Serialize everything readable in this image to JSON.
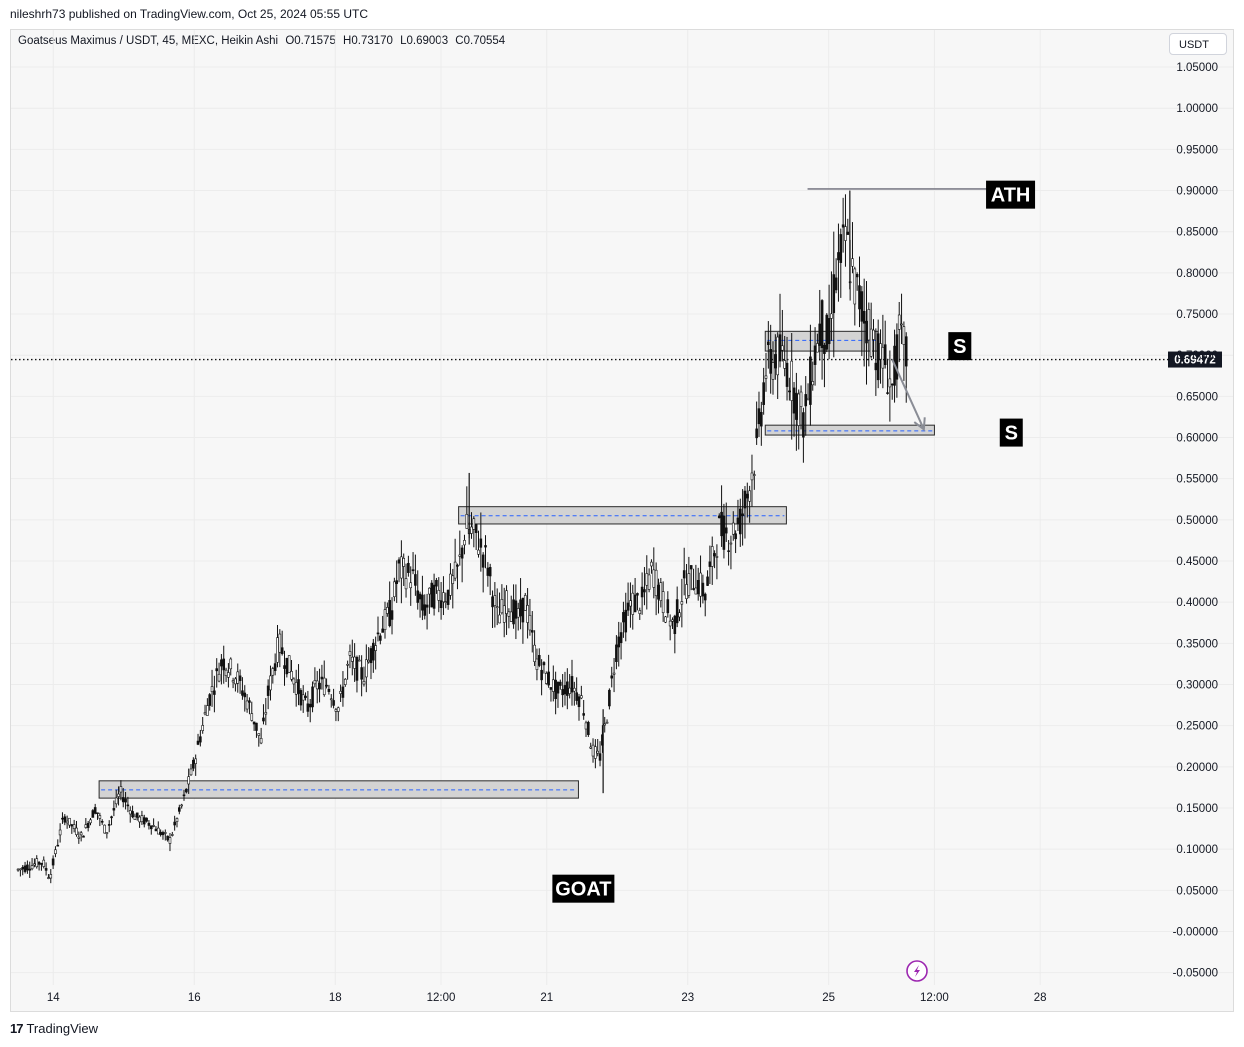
{
  "header": {
    "published_by": "nileshrh73 published on TradingView.com, Oct 25, 2024 05:55 UTC",
    "symbol": "Goatseus Maximus / USDT, 45, MEXC, Heikin Ashi",
    "ohlc": {
      "open": "O0.71575",
      "high": "H0.73170",
      "low": "L0.69003",
      "close": "C0.70554"
    }
  },
  "currency_button": "USDT",
  "footer": {
    "brand": "TradingView"
  },
  "chart_data": {
    "type": "candlestick",
    "y_ticks": [
      "1.05000",
      "1.00000",
      "0.95000",
      "0.90000",
      "0.85000",
      "0.80000",
      "0.75000",
      "0.70000",
      "0.65000",
      "0.60000",
      "0.55000",
      "0.50000",
      "0.45000",
      "0.40000",
      "0.35000",
      "0.30000",
      "0.25000",
      "0.20000",
      "0.15000",
      "0.10000",
      "0.05000",
      "-0.00000",
      "-0.05000"
    ],
    "ylim": [
      -0.065,
      1.095
    ],
    "x_ticks": [
      {
        "label": "14",
        "t": 0.1
      },
      {
        "label": "16",
        "t": 2.1
      },
      {
        "label": "18",
        "t": 4.1
      },
      {
        "label": "12:00",
        "t": 5.6
      },
      {
        "label": "21",
        "t": 7.1
      },
      {
        "label": "23",
        "t": 9.1
      },
      {
        "label": "25",
        "t": 11.1
      },
      {
        "label": "12:00",
        "t": 12.6
      },
      {
        "label": "28",
        "t": 14.1
      }
    ],
    "xlim": [
      -0.5,
      15.8
    ],
    "last_price": {
      "value": 0.69472,
      "label": "0.69472"
    },
    "price_path": [
      [
        -0.4,
        0.075
      ],
      [
        -0.05,
        0.085
      ],
      [
        0.05,
        0.065
      ],
      [
        0.25,
        0.14
      ],
      [
        0.5,
        0.115
      ],
      [
        0.7,
        0.15
      ],
      [
        0.85,
        0.12
      ],
      [
        1.05,
        0.17
      ],
      [
        1.25,
        0.14
      ],
      [
        1.5,
        0.13
      ],
      [
        1.75,
        0.11
      ],
      [
        1.95,
        0.16
      ],
      [
        2.1,
        0.205
      ],
      [
        2.3,
        0.28
      ],
      [
        2.5,
        0.33
      ],
      [
        2.7,
        0.31
      ],
      [
        2.9,
        0.27
      ],
      [
        3.05,
        0.23
      ],
      [
        3.15,
        0.29
      ],
      [
        3.3,
        0.35
      ],
      [
        3.5,
        0.31
      ],
      [
        3.7,
        0.27
      ],
      [
        3.85,
        0.3
      ],
      [
        4.0,
        0.3
      ],
      [
        4.15,
        0.27
      ],
      [
        4.3,
        0.33
      ],
      [
        4.5,
        0.31
      ],
      [
        4.7,
        0.36
      ],
      [
        4.9,
        0.39
      ],
      [
        5.0,
        0.44
      ],
      [
        5.2,
        0.43
      ],
      [
        5.35,
        0.39
      ],
      [
        5.5,
        0.41
      ],
      [
        5.7,
        0.41
      ],
      [
        5.85,
        0.44
      ],
      [
        5.95,
        0.49
      ],
      [
        6.1,
        0.48
      ],
      [
        6.25,
        0.45
      ],
      [
        6.4,
        0.38
      ],
      [
        6.55,
        0.4
      ],
      [
        6.7,
        0.38
      ],
      [
        6.8,
        0.4
      ],
      [
        6.95,
        0.33
      ],
      [
        7.1,
        0.31
      ],
      [
        7.25,
        0.29
      ],
      [
        7.45,
        0.3
      ],
      [
        7.6,
        0.28
      ],
      [
        7.75,
        0.22
      ],
      [
        7.85,
        0.21
      ],
      [
        7.95,
        0.26
      ],
      [
        8.1,
        0.35
      ],
      [
        8.3,
        0.4
      ],
      [
        8.45,
        0.4
      ],
      [
        8.6,
        0.44
      ],
      [
        8.75,
        0.4
      ],
      [
        8.9,
        0.37
      ],
      [
        9.05,
        0.42
      ],
      [
        9.2,
        0.43
      ],
      [
        9.35,
        0.41
      ],
      [
        9.55,
        0.49
      ],
      [
        9.7,
        0.48
      ],
      [
        9.85,
        0.5
      ],
      [
        10.0,
        0.55
      ],
      [
        10.1,
        0.6
      ],
      [
        10.2,
        0.68
      ],
      [
        10.35,
        0.7
      ],
      [
        10.5,
        0.69
      ],
      [
        10.6,
        0.66
      ],
      [
        10.75,
        0.62
      ],
      [
        10.9,
        0.7
      ],
      [
        11.0,
        0.74
      ],
      [
        11.1,
        0.71
      ],
      [
        11.2,
        0.8
      ],
      [
        11.35,
        0.84
      ],
      [
        11.45,
        0.79
      ],
      [
        11.6,
        0.75
      ],
      [
        11.7,
        0.73
      ],
      [
        11.8,
        0.7
      ],
      [
        11.9,
        0.69
      ],
      [
        12.0,
        0.66
      ],
      [
        12.1,
        0.72
      ],
      [
        12.2,
        0.7
      ]
    ],
    "extreme_wicks": [
      {
        "t": 11.4,
        "high": 0.9,
        "low": 0.78
      },
      {
        "t": 7.9,
        "high": 0.27,
        "low": 0.168
      },
      {
        "t": 6.0,
        "high": 0.557,
        "low": 0.47
      }
    ],
    "zones": [
      {
        "t_start": 0.75,
        "t_end": 7.55,
        "top": 0.183,
        "bottom": 0.162,
        "mid": 0.172
      },
      {
        "t_start": 5.85,
        "t_end": 10.5,
        "top": 0.516,
        "bottom": 0.495,
        "mid": 0.505
      },
      {
        "t_start": 10.2,
        "t_end": 11.8,
        "top": 0.729,
        "bottom": 0.705,
        "mid": 0.718
      },
      {
        "t_start": 10.2,
        "t_end": 12.6,
        "top": 0.615,
        "bottom": 0.603,
        "mid": 0.608
      }
    ],
    "ath_line": {
      "value": 0.902,
      "t_start": 10.8,
      "t_end": 13.5
    },
    "arrow": {
      "from": [
        12.0,
        0.695
      ],
      "to": [
        12.45,
        0.61
      ]
    },
    "labels": [
      {
        "text": "ATH",
        "t": 13.68,
        "y": 0.895
      },
      {
        "text": "S",
        "t": 12.96,
        "y": 0.711
      },
      {
        "text": "S",
        "t": 13.69,
        "y": 0.606
      },
      {
        "text": "GOAT",
        "t": 7.62,
        "y": 0.052
      }
    ]
  }
}
